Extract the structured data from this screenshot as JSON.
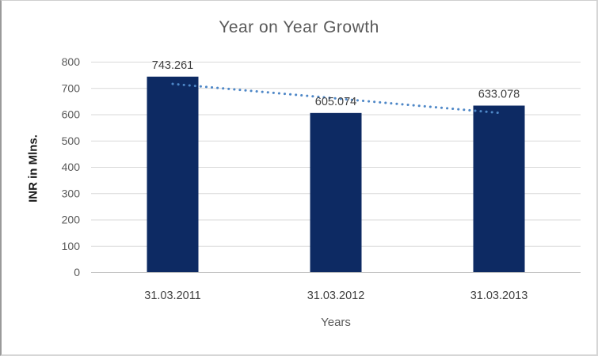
{
  "chart_data": {
    "type": "bar",
    "title": "Year on Year Growth",
    "xlabel": "Years",
    "ylabel": "INR in Mlns.",
    "categories": [
      "31.03.2011",
      "31.03.2012",
      "31.03.2013"
    ],
    "values": [
      743.261,
      605.074,
      633.078
    ],
    "data_labels": [
      "743.261",
      "605.074",
      "633.078"
    ],
    "ylim": [
      0,
      800
    ],
    "ytick_step": 100,
    "grid": true,
    "legend": false,
    "trendline": {
      "type": "linear",
      "style": "dotted",
      "start_value": 715.6,
      "end_value": 605.4
    },
    "colors": {
      "bar": "#0d2a63",
      "trendline": "#4e87c7",
      "gridline": "#d9d9d9",
      "zero_line": "#c3c3c3",
      "tick_label": "#595959",
      "category_label": "#404040",
      "data_label": "#3f3f3f",
      "title": "#595959",
      "background": "#ffffff"
    }
  }
}
